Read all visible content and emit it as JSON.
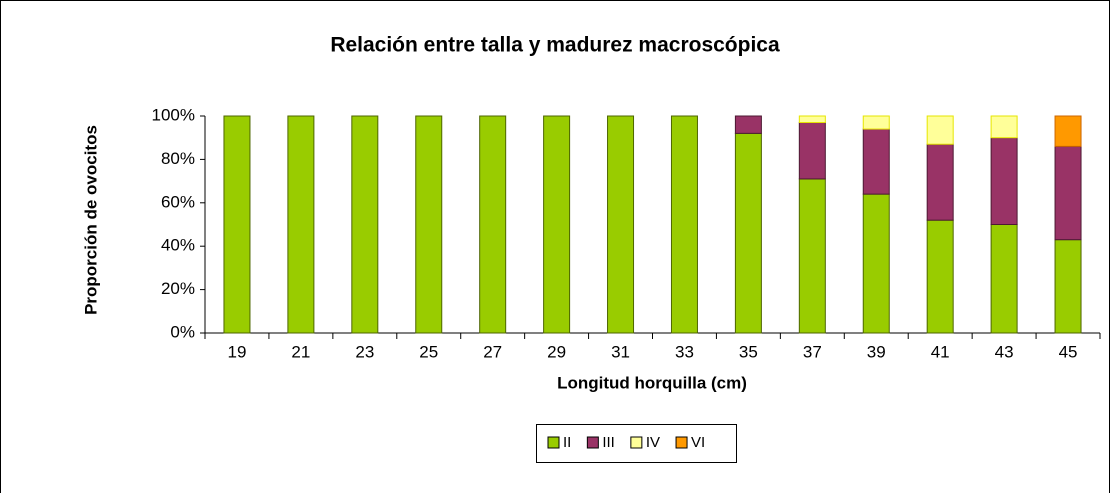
{
  "chart_data": {
    "type": "stacked_bar",
    "title": "Relación entre talla y madurez macroscópica",
    "x_label": "Longitud horquilla (cm)",
    "y_label": "Proporción de ovocitos",
    "categories": [
      "19",
      "21",
      "23",
      "25",
      "27",
      "29",
      "31",
      "33",
      "35",
      "37",
      "39",
      "41",
      "43",
      "45"
    ],
    "series": [
      {
        "name": "II",
        "color": "#99cc00",
        "values": [
          100,
          100,
          100,
          100,
          100,
          100,
          100,
          100,
          92,
          71,
          64,
          52,
          50,
          43
        ]
      },
      {
        "name": "III",
        "color": "#993366",
        "values": [
          0,
          0,
          0,
          0,
          0,
          0,
          0,
          0,
          8,
          26,
          30,
          35,
          40,
          43
        ]
      },
      {
        "name": "IV",
        "color": "#ffff99",
        "values": [
          0,
          0,
          0,
          0,
          0,
          0,
          0,
          0,
          0,
          3,
          6,
          13,
          10,
          0
        ]
      },
      {
        "name": "VI",
        "color": "#ff9900",
        "values": [
          0,
          0,
          0,
          0,
          0,
          0,
          0,
          0,
          0,
          0,
          0,
          0,
          0,
          14
        ]
      }
    ],
    "ylim": [
      0,
      100
    ],
    "yticks": [
      {
        "value": 0,
        "label": "0%"
      },
      {
        "value": 20,
        "label": "20%"
      },
      {
        "value": 40,
        "label": "40%"
      },
      {
        "value": 60,
        "label": "60%"
      },
      {
        "value": 80,
        "label": "80%"
      },
      {
        "value": 100,
        "label": "100%"
      }
    ],
    "legend": "bottom"
  }
}
